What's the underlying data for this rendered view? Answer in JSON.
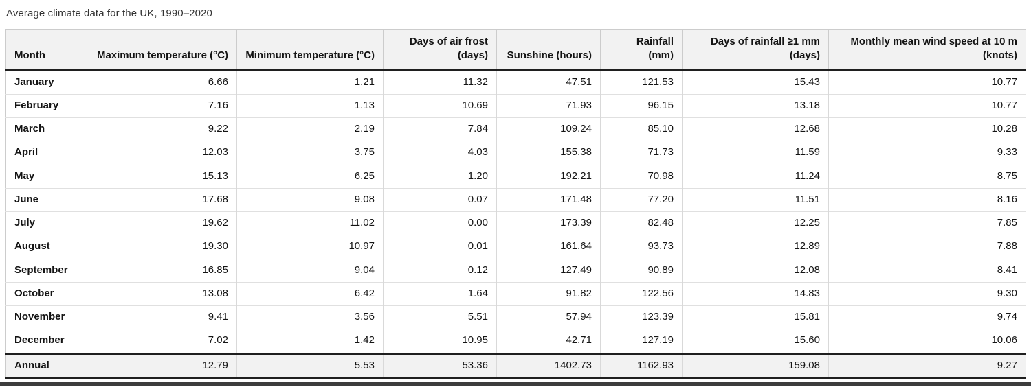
{
  "title": "Average climate data for the UK, 1990–2020",
  "chart_data": {
    "type": "table",
    "title": "Average climate data for the UK, 1990–2020",
    "columns": [
      "Month",
      "Maximum temperature (°C)",
      "Minimum temperature (°C)",
      "Days of air frost (days)",
      "Sunshine (hours)",
      "Rainfall (mm)",
      "Days of rainfall ≥1 mm (days)",
      "Monthly mean wind speed at 10 m (knots)"
    ],
    "rows": [
      [
        "January",
        "6.66",
        "1.21",
        "11.32",
        "47.51",
        "121.53",
        "15.43",
        "10.77"
      ],
      [
        "February",
        "7.16",
        "1.13",
        "10.69",
        "71.93",
        "96.15",
        "13.18",
        "10.77"
      ],
      [
        "March",
        "9.22",
        "2.19",
        "7.84",
        "109.24",
        "85.10",
        "12.68",
        "10.28"
      ],
      [
        "April",
        "12.03",
        "3.75",
        "4.03",
        "155.38",
        "71.73",
        "11.59",
        "9.33"
      ],
      [
        "May",
        "15.13",
        "6.25",
        "1.20",
        "192.21",
        "70.98",
        "11.24",
        "8.75"
      ],
      [
        "June",
        "17.68",
        "9.08",
        "0.07",
        "171.48",
        "77.20",
        "11.51",
        "8.16"
      ],
      [
        "July",
        "19.62",
        "11.02",
        "0.00",
        "173.39",
        "82.48",
        "12.25",
        "7.85"
      ],
      [
        "August",
        "19.30",
        "10.97",
        "0.01",
        "161.64",
        "93.73",
        "12.89",
        "7.88"
      ],
      [
        "September",
        "16.85",
        "9.04",
        "0.12",
        "127.49",
        "90.89",
        "12.08",
        "8.41"
      ],
      [
        "October",
        "13.08",
        "6.42",
        "1.64",
        "91.82",
        "122.56",
        "14.83",
        "9.30"
      ],
      [
        "November",
        "9.41",
        "3.56",
        "5.51",
        "57.94",
        "123.39",
        "15.81",
        "9.74"
      ],
      [
        "December",
        "7.02",
        "1.42",
        "10.95",
        "42.71",
        "127.19",
        "15.60",
        "10.06"
      ]
    ],
    "footer_row": [
      "Annual",
      "12.79",
      "5.53",
      "53.36",
      "1402.73",
      "1162.93",
      "159.08",
      "9.27"
    ]
  },
  "colors": {
    "header_bg": "#f2f2f2",
    "footer_bg": "#f2f2f2",
    "heavy_border": "#1f1f1f",
    "light_border": "#d9d9d9",
    "text": "#141414",
    "title_text": "#333333",
    "bottom_bar": "#3d3d3d"
  }
}
